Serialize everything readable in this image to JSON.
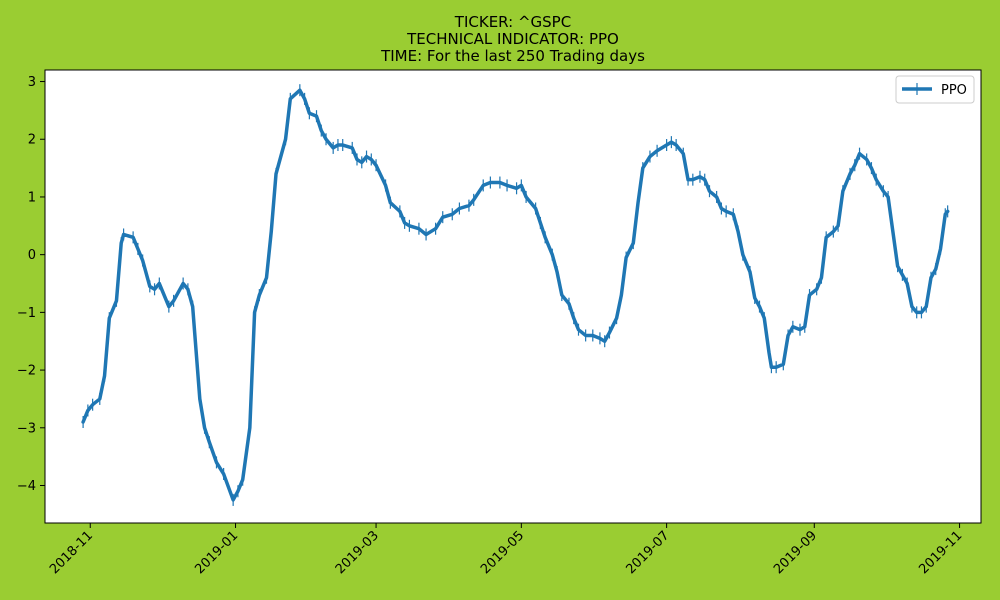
{
  "page": {
    "background": "#9acd32"
  },
  "chart_data": {
    "type": "line",
    "title_lines": [
      "TICKER:  ^GSPC",
      "TECHNICAL INDICATOR:  PPO",
      "TIME: For the last 250 Trading days"
    ],
    "xlabel": "",
    "ylabel": "",
    "x_type": "date",
    "xlim": [
      "2018-10-13",
      "2019-11-10"
    ],
    "ylim": [
      -4.65,
      3.2
    ],
    "yticks": [
      -4,
      -3,
      -2,
      -1,
      0,
      1,
      2,
      3
    ],
    "xticks": [
      "2018-11",
      "2019-01",
      "2019-03",
      "2019-05",
      "2019-07",
      "2019-09",
      "2019-11"
    ],
    "xtick_dates": [
      "2018-11-01",
      "2019-01-01",
      "2019-03-01",
      "2019-05-01",
      "2019-07-01",
      "2019-09-01",
      "2019-11-01"
    ],
    "grid": false,
    "legend": {
      "position": "top-right",
      "entries": [
        "PPO"
      ]
    },
    "series": [
      {
        "name": "PPO",
        "color": "#1f77b4",
        "marker": "vertical-line",
        "points": [
          [
            "2018-10-29",
            -2.9
          ],
          [
            "2018-10-31",
            -2.7
          ],
          [
            "2018-11-02",
            -2.6
          ],
          [
            "2018-11-05",
            -2.5
          ],
          [
            "2018-11-07",
            -2.1
          ],
          [
            "2018-11-09",
            -1.1
          ],
          [
            "2018-11-12",
            -0.8
          ],
          [
            "2018-11-14",
            0.2
          ],
          [
            "2018-11-15",
            0.35
          ],
          [
            "2018-11-19",
            0.3
          ],
          [
            "2018-11-21",
            0.1
          ],
          [
            "2018-11-23",
            -0.1
          ],
          [
            "2018-11-26",
            -0.55
          ],
          [
            "2018-11-28",
            -0.6
          ],
          [
            "2018-11-30",
            -0.5
          ],
          [
            "2018-12-04",
            -0.9
          ],
          [
            "2018-12-06",
            -0.8
          ],
          [
            "2018-12-10",
            -0.5
          ],
          [
            "2018-12-12",
            -0.6
          ],
          [
            "2018-12-14",
            -0.9
          ],
          [
            "2018-12-17",
            -2.5
          ],
          [
            "2018-12-19",
            -3.0
          ],
          [
            "2018-12-21",
            -3.25
          ],
          [
            "2018-12-24",
            -3.6
          ],
          [
            "2018-12-27",
            -3.8
          ],
          [
            "2018-12-31",
            -4.25
          ],
          [
            "2019-01-02",
            -4.1
          ],
          [
            "2019-01-04",
            -3.9
          ],
          [
            "2019-01-07",
            -3.0
          ],
          [
            "2019-01-09",
            -1.0
          ],
          [
            "2019-01-11",
            -0.7
          ],
          [
            "2019-01-14",
            -0.4
          ],
          [
            "2019-01-16",
            0.4
          ],
          [
            "2019-01-18",
            1.4
          ],
          [
            "2019-01-22",
            2.0
          ],
          [
            "2019-01-24",
            2.7
          ],
          [
            "2019-01-28",
            2.85
          ],
          [
            "2019-01-30",
            2.7
          ],
          [
            "2019-02-01",
            2.45
          ],
          [
            "2019-02-04",
            2.4
          ],
          [
            "2019-02-06",
            2.15
          ],
          [
            "2019-02-08",
            2.0
          ],
          [
            "2019-02-11",
            1.85
          ],
          [
            "2019-02-13",
            1.9
          ],
          [
            "2019-02-15",
            1.9
          ],
          [
            "2019-02-19",
            1.85
          ],
          [
            "2019-02-21",
            1.65
          ],
          [
            "2019-02-23",
            1.6
          ],
          [
            "2019-02-25",
            1.7
          ],
          [
            "2019-02-27",
            1.65
          ],
          [
            "2019-03-01",
            1.55
          ],
          [
            "2019-03-05",
            1.2
          ],
          [
            "2019-03-07",
            0.9
          ],
          [
            "2019-03-11",
            0.75
          ],
          [
            "2019-03-13",
            0.55
          ],
          [
            "2019-03-15",
            0.5
          ],
          [
            "2019-03-19",
            0.45
          ],
          [
            "2019-03-22",
            0.35
          ],
          [
            "2019-03-26",
            0.45
          ],
          [
            "2019-03-29",
            0.65
          ],
          [
            "2019-04-02",
            0.7
          ],
          [
            "2019-04-05",
            0.8
          ],
          [
            "2019-04-09",
            0.85
          ],
          [
            "2019-04-11",
            0.95
          ],
          [
            "2019-04-15",
            1.2
          ],
          [
            "2019-04-18",
            1.25
          ],
          [
            "2019-04-22",
            1.25
          ],
          [
            "2019-04-25",
            1.2
          ],
          [
            "2019-04-29",
            1.15
          ],
          [
            "2019-05-01",
            1.2
          ],
          [
            "2019-05-03",
            1.0
          ],
          [
            "2019-05-07",
            0.8
          ],
          [
            "2019-05-09",
            0.55
          ],
          [
            "2019-05-11",
            0.3
          ],
          [
            "2019-05-14",
            0.0
          ],
          [
            "2019-05-16",
            -0.3
          ],
          [
            "2019-05-18",
            -0.7
          ],
          [
            "2019-05-21",
            -0.85
          ],
          [
            "2019-05-23",
            -1.1
          ],
          [
            "2019-05-25",
            -1.3
          ],
          [
            "2019-05-28",
            -1.4
          ],
          [
            "2019-05-31",
            -1.4
          ],
          [
            "2019-06-03",
            -1.45
          ],
          [
            "2019-06-05",
            -1.5
          ],
          [
            "2019-06-07",
            -1.35
          ],
          [
            "2019-06-10",
            -1.1
          ],
          [
            "2019-06-12",
            -0.7
          ],
          [
            "2019-06-14",
            -0.05
          ],
          [
            "2019-06-17",
            0.2
          ],
          [
            "2019-06-19",
            0.9
          ],
          [
            "2019-06-21",
            1.5
          ],
          [
            "2019-06-24",
            1.7
          ],
          [
            "2019-06-27",
            1.8
          ],
          [
            "2019-07-01",
            1.9
          ],
          [
            "2019-07-03",
            1.95
          ],
          [
            "2019-07-05",
            1.9
          ],
          [
            "2019-07-08",
            1.75
          ],
          [
            "2019-07-10",
            1.3
          ],
          [
            "2019-07-12",
            1.3
          ],
          [
            "2019-07-15",
            1.35
          ],
          [
            "2019-07-17",
            1.3
          ],
          [
            "2019-07-19",
            1.1
          ],
          [
            "2019-07-22",
            1.0
          ],
          [
            "2019-07-24",
            0.8
          ],
          [
            "2019-07-26",
            0.75
          ],
          [
            "2019-07-29",
            0.7
          ],
          [
            "2019-07-31",
            0.4
          ],
          [
            "2019-08-02",
            0.0
          ],
          [
            "2019-08-05",
            -0.3
          ],
          [
            "2019-08-07",
            -0.75
          ],
          [
            "2019-08-09",
            -0.9
          ],
          [
            "2019-08-11",
            -1.1
          ],
          [
            "2019-08-13",
            -1.7
          ],
          [
            "2019-08-14",
            -1.95
          ],
          [
            "2019-08-16",
            -1.95
          ],
          [
            "2019-08-19",
            -1.9
          ],
          [
            "2019-08-21",
            -1.4
          ],
          [
            "2019-08-23",
            -1.25
          ],
          [
            "2019-08-26",
            -1.3
          ],
          [
            "2019-08-28",
            -1.25
          ],
          [
            "2019-08-30",
            -0.7
          ],
          [
            "2019-09-02",
            -0.6
          ],
          [
            "2019-09-04",
            -0.4
          ],
          [
            "2019-09-06",
            0.3
          ],
          [
            "2019-09-09",
            0.4
          ],
          [
            "2019-09-11",
            0.5
          ],
          [
            "2019-09-13",
            1.1
          ],
          [
            "2019-09-16",
            1.4
          ],
          [
            "2019-09-18",
            1.55
          ],
          [
            "2019-09-20",
            1.75
          ],
          [
            "2019-09-23",
            1.65
          ],
          [
            "2019-09-25",
            1.5
          ],
          [
            "2019-09-27",
            1.3
          ],
          [
            "2019-09-30",
            1.1
          ],
          [
            "2019-10-02",
            1.0
          ],
          [
            "2019-10-04",
            0.4
          ],
          [
            "2019-10-06",
            -0.2
          ],
          [
            "2019-10-08",
            -0.35
          ],
          [
            "2019-10-10",
            -0.5
          ],
          [
            "2019-10-12",
            -0.9
          ],
          [
            "2019-10-14",
            -1.0
          ],
          [
            "2019-10-16",
            -1.0
          ],
          [
            "2019-10-18",
            -0.9
          ],
          [
            "2019-10-20",
            -0.4
          ],
          [
            "2019-10-22",
            -0.25
          ],
          [
            "2019-10-24",
            0.1
          ],
          [
            "2019-10-26",
            0.7
          ],
          [
            "2019-10-27",
            0.75
          ]
        ]
      }
    ]
  }
}
